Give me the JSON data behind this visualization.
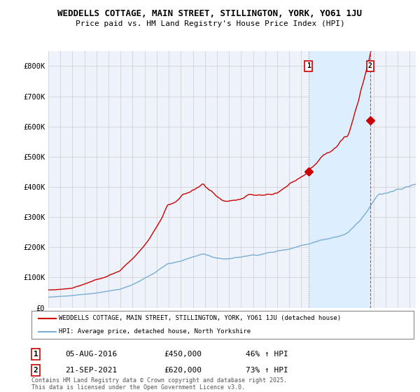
{
  "title_line1": "WEDDELLS COTTAGE, MAIN STREET, STILLINGTON, YORK, YO61 1JU",
  "title_line2": "Price paid vs. HM Land Registry's House Price Index (HPI)",
  "ylabel_ticks": [
    "£0",
    "£100K",
    "£200K",
    "£300K",
    "£400K",
    "£500K",
    "£600K",
    "£700K",
    "£800K"
  ],
  "ylim": [
    0,
    850000
  ],
  "xlim_start": 1995.0,
  "xlim_end": 2025.5,
  "marker1_date": 2016.59,
  "marker1_label": "1",
  "marker1_price": 450000,
  "marker2_date": 2021.72,
  "marker2_label": "2",
  "marker2_price": 620000,
  "legend_line1": "WEDDELLS COTTAGE, MAIN STREET, STILLINGTON, YORK, YO61 1JU (detached house)",
  "legend_line2": "HPI: Average price, detached house, North Yorkshire",
  "annotation1_num": "1",
  "annotation1_date": "05-AUG-2016",
  "annotation1_price": "£450,000",
  "annotation1_hpi": "46% ↑ HPI",
  "annotation2_num": "2",
  "annotation2_date": "21-SEP-2021",
  "annotation2_price": "£620,000",
  "annotation2_hpi": "73% ↑ HPI",
  "copyright_text": "Contains HM Land Registry data © Crown copyright and database right 2025.\nThis data is licensed under the Open Government Licence v3.0.",
  "line1_color": "#cc0000",
  "line2_color": "#7aadd4",
  "highlight_color": "#ddeeff",
  "background_color": "#ffffff",
  "plot_bg_color": "#eef2fa",
  "grid_color": "#cccccc",
  "marker1_line_color": "#999999",
  "marker2_line_color": "#dd4444"
}
